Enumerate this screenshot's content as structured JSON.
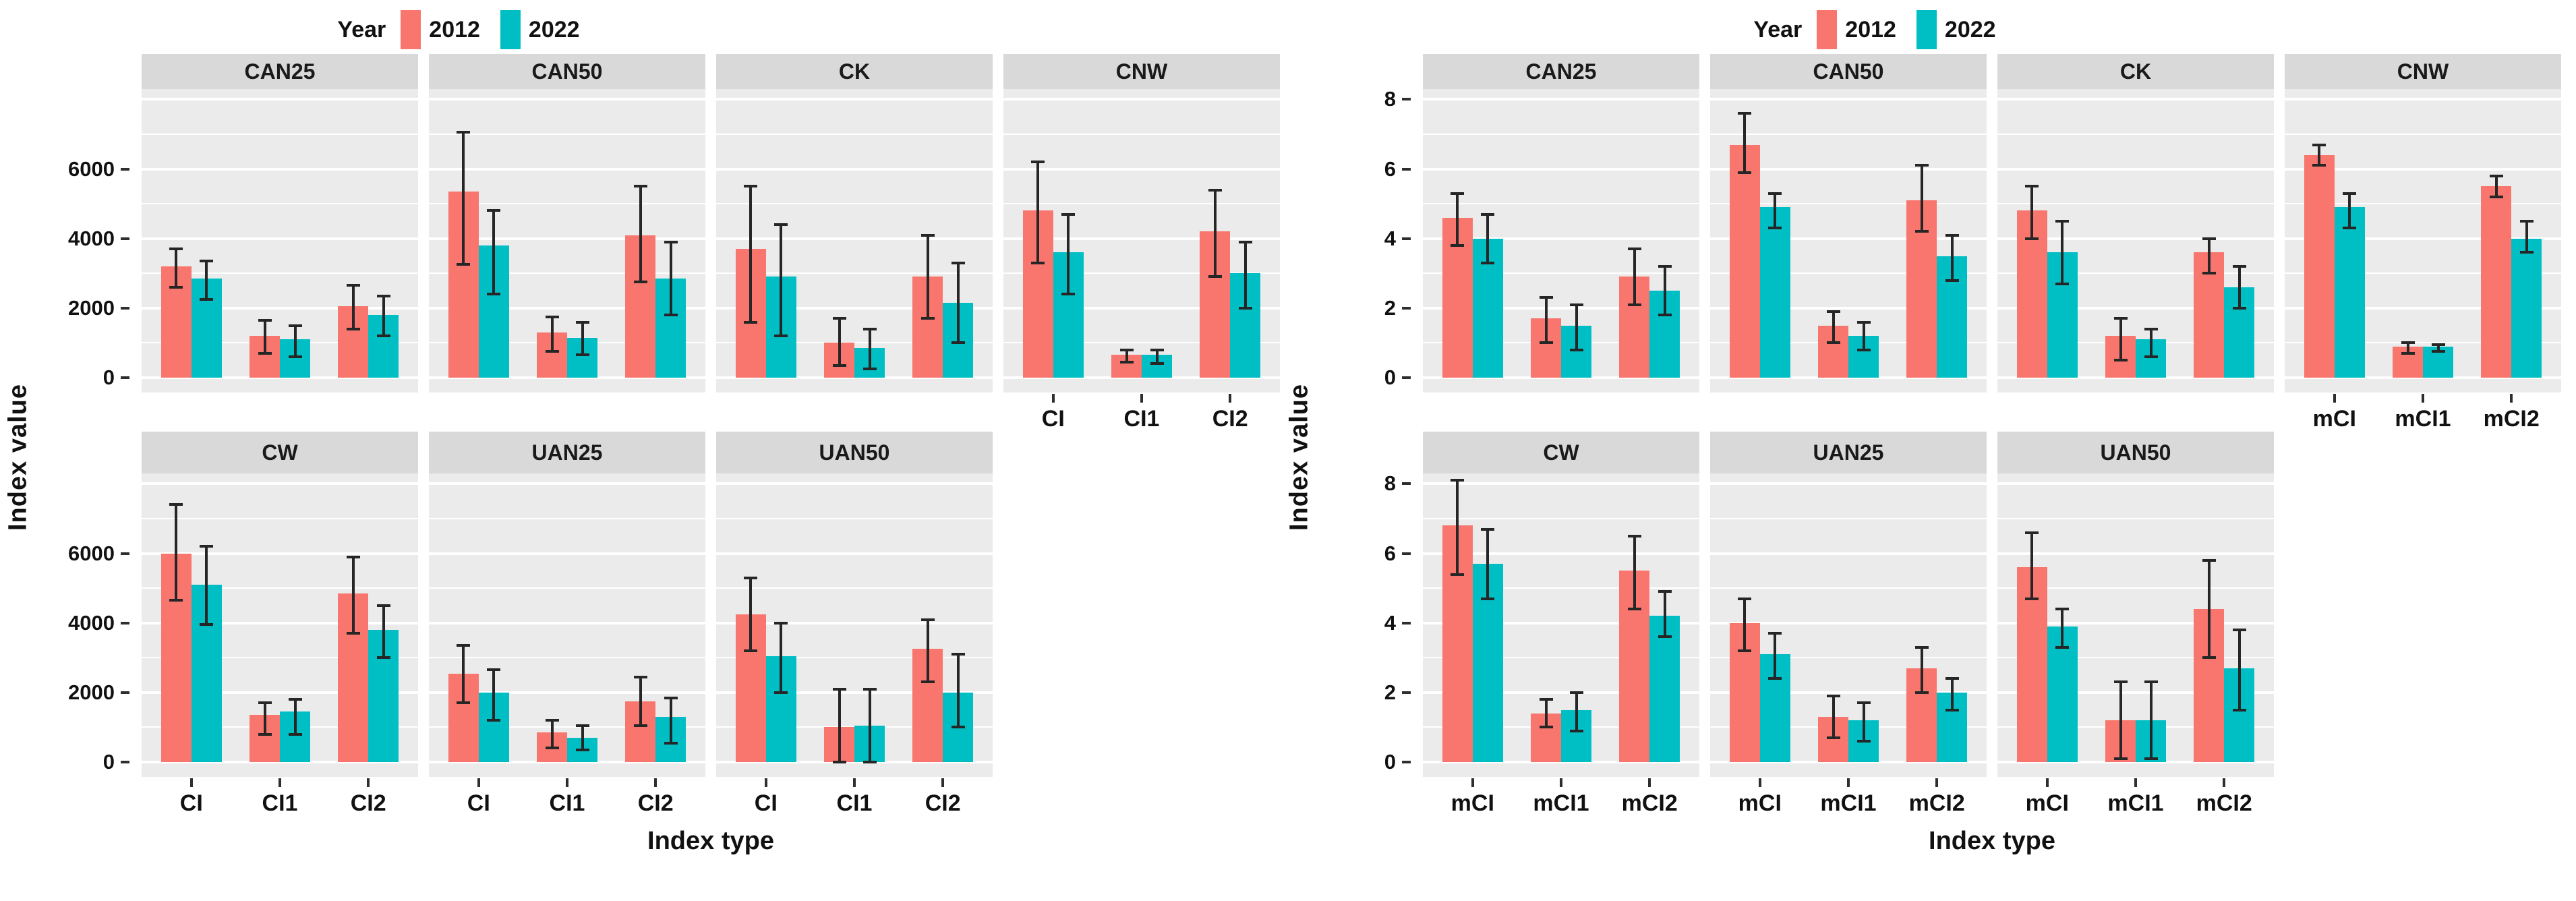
{
  "colors": {
    "year2012": "#F8766D",
    "year2022": "#00BFC4",
    "panel_bg": "#EBEBEB",
    "strip_bg": "#D9D9D9",
    "gridline": "#FFFFFF",
    "error_bar": "#262626",
    "text": "#111111"
  },
  "legend": {
    "title": "Year",
    "entries": [
      {
        "label": "2012",
        "color_key": "year2012"
      },
      {
        "label": "2022",
        "color_key": "year2022"
      }
    ]
  },
  "chart_data": [
    {
      "type": "bar",
      "id": "index-value-chart",
      "ylabel": "Index value",
      "xlabel": "Index type",
      "legend_position": "top",
      "grid": "on",
      "y_ticks": [
        0,
        2000,
        4000,
        6000
      ],
      "y_max": 8300,
      "categories": [
        "CI",
        "CI1",
        "CI2"
      ],
      "series_names": [
        "2012",
        "2022"
      ],
      "facet_rows": [
        [
          "CAN25",
          "CAN50",
          "CK",
          "CNW"
        ],
        [
          "CW",
          "UAN25",
          "UAN50",
          null
        ]
      ],
      "facets": {
        "CAN25": {
          "series": [
            {
              "name": "2012",
              "values": [
                3200,
                1200,
                2050
              ],
              "errors": [
                [
                  2600,
                  3700
                ],
                [
                  700,
                  1650
                ],
                [
                  1400,
                  2650
                ]
              ]
            },
            {
              "name": "2022",
              "values": [
                2850,
                1100,
                1800
              ],
              "errors": [
                [
                  2250,
                  3350
                ],
                [
                  600,
                  1500
                ],
                [
                  1200,
                  2350
                ]
              ]
            }
          ]
        },
        "CAN50": {
          "series": [
            {
              "name": "2012",
              "values": [
                5350,
                1300,
                4100
              ],
              "errors": [
                [
                  3250,
                  7050
                ],
                [
                  750,
                  1750
                ],
                [
                  2750,
                  5500
                ]
              ]
            },
            {
              "name": "2022",
              "values": [
                3800,
                1150,
                2850
              ],
              "errors": [
                [
                  2400,
                  4800
                ],
                [
                  650,
                  1600
                ],
                [
                  1800,
                  3900
                ]
              ]
            }
          ]
        },
        "CK": {
          "series": [
            {
              "name": "2012",
              "values": [
                3700,
                1000,
                2900
              ],
              "errors": [
                [
                  1600,
                  5500
                ],
                [
                  350,
                  1700
                ],
                [
                  1700,
                  4100
                ]
              ]
            },
            {
              "name": "2022",
              "values": [
                2900,
                850,
                2150
              ],
              "errors": [
                [
                  1200,
                  4400
                ],
                [
                  250,
                  1400
                ],
                [
                  1000,
                  3300
                ]
              ]
            }
          ]
        },
        "CNW": {
          "series": [
            {
              "name": "2012",
              "values": [
                4800,
                650,
                4200
              ],
              "errors": [
                [
                  3300,
                  6200
                ],
                [
                  450,
                  800
                ],
                [
                  2900,
                  5400
                ]
              ]
            },
            {
              "name": "2022",
              "values": [
                3600,
                650,
                3000
              ],
              "errors": [
                [
                  2400,
                  4700
                ],
                [
                  400,
                  800
                ],
                [
                  2000,
                  3900
                ]
              ]
            }
          ]
        },
        "CW": {
          "series": [
            {
              "name": "2012",
              "values": [
                6000,
                1350,
                4850
              ],
              "errors": [
                [
                  4650,
                  7400
                ],
                [
                  800,
                  1700
                ],
                [
                  3700,
                  5900
                ]
              ]
            },
            {
              "name": "2022",
              "values": [
                5100,
                1450,
                3800
              ],
              "errors": [
                [
                  3950,
                  6200
                ],
                [
                  800,
                  1800
                ],
                [
                  3000,
                  4500
                ]
              ]
            }
          ]
        },
        "UAN25": {
          "series": [
            {
              "name": "2012",
              "values": [
                2550,
                850,
                1750
              ],
              "errors": [
                [
                  1700,
                  3350
                ],
                [
                  400,
                  1200
                ],
                [
                  1050,
                  2450
                ]
              ]
            },
            {
              "name": "2022",
              "values": [
                2000,
                700,
                1300
              ],
              "errors": [
                [
                  1200,
                  2650
                ],
                [
                  350,
                  1050
                ],
                [
                  550,
                  1850
                ]
              ]
            }
          ]
        },
        "UAN50": {
          "series": [
            {
              "name": "2012",
              "values": [
                4250,
                1000,
                3250
              ],
              "errors": [
                [
                  3200,
                  5300
                ],
                [
                  0,
                  2100
                ],
                [
                  2300,
                  4100
                ]
              ]
            },
            {
              "name": "2022",
              "values": [
                3050,
                1050,
                2000
              ],
              "errors": [
                [
                  2000,
                  4000
                ],
                [
                  0,
                  2100
                ],
                [
                  1000,
                  3100
                ]
              ]
            }
          ]
        }
      }
    },
    {
      "type": "bar",
      "id": "modified-index-value-chart",
      "ylabel": "Index value",
      "xlabel": "Index type",
      "legend_position": "top",
      "grid": "on",
      "y_ticks": [
        0,
        2,
        4,
        6,
        8
      ],
      "y_max": 8.3,
      "categories": [
        "mCI",
        "mCI1",
        "mCI2"
      ],
      "series_names": [
        "2012",
        "2022"
      ],
      "facet_rows": [
        [
          "CAN25",
          "CAN50",
          "CK",
          "CNW"
        ],
        [
          "CW",
          "UAN25",
          "UAN50",
          null
        ]
      ],
      "facets": {
        "CAN25": {
          "series": [
            {
              "name": "2012",
              "values": [
                4.6,
                1.7,
                2.9
              ],
              "errors": [
                [
                  3.8,
                  5.3
                ],
                [
                  1.0,
                  2.3
                ],
                [
                  2.1,
                  3.7
                ]
              ]
            },
            {
              "name": "2022",
              "values": [
                4.0,
                1.5,
                2.5
              ],
              "errors": [
                [
                  3.3,
                  4.7
                ],
                [
                  0.8,
                  2.1
                ],
                [
                  1.8,
                  3.2
                ]
              ]
            }
          ]
        },
        "CAN50": {
          "series": [
            {
              "name": "2012",
              "values": [
                6.7,
                1.5,
                5.1
              ],
              "errors": [
                [
                  5.9,
                  7.6
                ],
                [
                  1.0,
                  1.9
                ],
                [
                  4.2,
                  6.1
                ]
              ]
            },
            {
              "name": "2022",
              "values": [
                4.9,
                1.2,
                3.5
              ],
              "errors": [
                [
                  4.3,
                  5.3
                ],
                [
                  0.8,
                  1.6
                ],
                [
                  2.8,
                  4.1
                ]
              ]
            }
          ]
        },
        "CK": {
          "series": [
            {
              "name": "2012",
              "values": [
                4.8,
                1.2,
                3.6
              ],
              "errors": [
                [
                  4.0,
                  5.5
                ],
                [
                  0.5,
                  1.7
                ],
                [
                  3.0,
                  4.0
                ]
              ]
            },
            {
              "name": "2022",
              "values": [
                3.6,
                1.1,
                2.6
              ],
              "errors": [
                [
                  2.7,
                  4.5
                ],
                [
                  0.6,
                  1.4
                ],
                [
                  2.0,
                  3.2
                ]
              ]
            }
          ]
        },
        "CNW": {
          "series": [
            {
              "name": "2012",
              "values": [
                6.4,
                0.9,
                5.5
              ],
              "errors": [
                [
                  6.1,
                  6.7
                ],
                [
                  0.7,
                  1.0
                ],
                [
                  5.2,
                  5.8
                ]
              ]
            },
            {
              "name": "2022",
              "values": [
                4.9,
                0.9,
                4.0
              ],
              "errors": [
                [
                  4.3,
                  5.3
                ],
                [
                  0.75,
                  0.95
                ],
                [
                  3.6,
                  4.5
                ]
              ]
            }
          ]
        },
        "CW": {
          "series": [
            {
              "name": "2012",
              "values": [
                6.8,
                1.4,
                5.5
              ],
              "errors": [
                [
                  5.4,
                  8.1
                ],
                [
                  1.0,
                  1.8
                ],
                [
                  4.4,
                  6.5
                ]
              ]
            },
            {
              "name": "2022",
              "values": [
                5.7,
                1.5,
                4.2
              ],
              "errors": [
                [
                  4.7,
                  6.7
                ],
                [
                  0.9,
                  2.0
                ],
                [
                  3.6,
                  4.9
                ]
              ]
            }
          ]
        },
        "UAN25": {
          "series": [
            {
              "name": "2012",
              "values": [
                4.0,
                1.3,
                2.7
              ],
              "errors": [
                [
                  3.2,
                  4.7
                ],
                [
                  0.7,
                  1.9
                ],
                [
                  2.0,
                  3.3
                ]
              ]
            },
            {
              "name": "2022",
              "values": [
                3.1,
                1.2,
                2.0
              ],
              "errors": [
                [
                  2.4,
                  3.7
                ],
                [
                  0.6,
                  1.7
                ],
                [
                  1.5,
                  2.4
                ]
              ]
            }
          ]
        },
        "UAN50": {
          "series": [
            {
              "name": "2012",
              "values": [
                5.6,
                1.2,
                4.4
              ],
              "errors": [
                [
                  4.7,
                  6.6
                ],
                [
                  0.1,
                  2.3
                ],
                [
                  3.0,
                  5.8
                ]
              ]
            },
            {
              "name": "2022",
              "values": [
                3.9,
                1.2,
                2.7
              ],
              "errors": [
                [
                  3.3,
                  4.4
                ],
                [
                  0.1,
                  2.3
                ],
                [
                  1.5,
                  3.8
                ]
              ]
            }
          ]
        }
      }
    }
  ]
}
